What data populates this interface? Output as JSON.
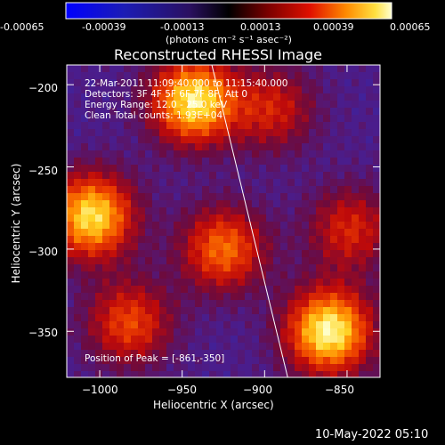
{
  "colorbar": {
    "tick_labels": [
      "-0.00065",
      "-0.00039",
      "-0.00013",
      "0.00013",
      "0.00039",
      "0.00065"
    ],
    "unit_label": "(photons cm⁻² s⁻¹ asec⁻²)",
    "range": [
      -0.00065,
      0.00065
    ]
  },
  "chart_data": {
    "type": "heatmap",
    "title": "Reconstructed RHESSI Image",
    "xlabel": "Heliocentric X (arcsec)",
    "ylabel": "Heliocentric Y (arcsec)",
    "xlim": [
      -1020,
      -830
    ],
    "ylim": [
      -378,
      -188
    ],
    "x_ticks": [
      -1000,
      -950,
      -900,
      -850
    ],
    "y_ticks": [
      -200,
      -250,
      -300,
      -350
    ],
    "x_tick_labels": [
      "−1000",
      "−950",
      "−900",
      "−850"
    ],
    "y_tick_labels": [
      "−200",
      "−250",
      "−300",
      "−350"
    ],
    "annotations": [
      "22-Mar-2011 11:09:40.000 to 11:15:40.000",
      "Detectors: 3F 4F 5F 6F 7F 8F, Att 0",
      "Energy Range: 12.0 - 25.0 keV",
      "Clean    Total counts: 1.93E+04"
    ],
    "peak_label": "Position of Peak = [-861,-350]",
    "peak": [
      -861,
      -350
    ],
    "limb_line": [
      [
        -932,
        -188
      ],
      [
        -886,
        -378
      ]
    ],
    "sources": [
      {
        "x": -943,
        "y": -210,
        "intensity": 0.00062
      },
      {
        "x": -1005,
        "y": -280,
        "intensity": 0.0006
      },
      {
        "x": -861,
        "y": -350,
        "intensity": 0.00065
      },
      {
        "x": -925,
        "y": -300,
        "intensity": 0.00042
      },
      {
        "x": -982,
        "y": -345,
        "intensity": 0.00036
      },
      {
        "x": -848,
        "y": -288,
        "intensity": 0.0003
      },
      {
        "x": -895,
        "y": -215,
        "intensity": 0.00028
      }
    ]
  },
  "footer": {
    "timestamp": "10-May-2022 05:10"
  }
}
